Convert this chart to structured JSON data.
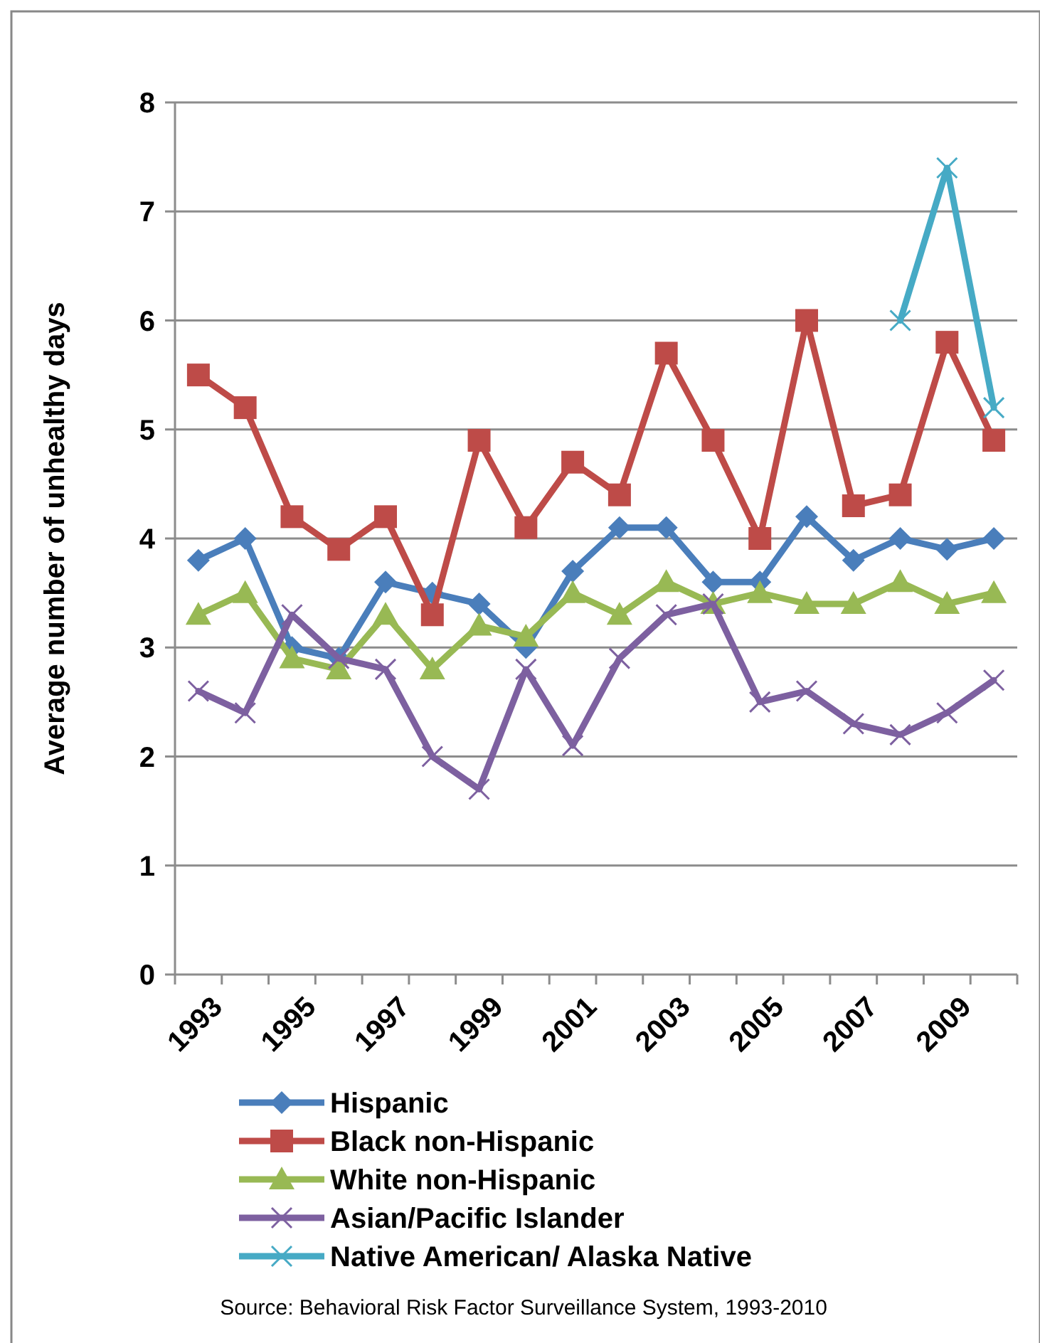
{
  "chart_data": {
    "type": "line",
    "ylabel": "Average number of unhealthy days",
    "categories": [
      "1993",
      null,
      "1995",
      null,
      "1997",
      null,
      "1999",
      null,
      "2001",
      null,
      "2003",
      null,
      "2005",
      null,
      "2007",
      null,
      "2009",
      null
    ],
    "series": [
      {
        "name": "Hispanic",
        "color": "#4a7ebb",
        "marker": "diamond",
        "values": [
          3.8,
          4.0,
          3.0,
          2.9,
          3.6,
          3.5,
          3.4,
          3.0,
          3.7,
          4.1,
          4.1,
          3.6,
          3.6,
          4.2,
          3.8,
          4.0,
          3.9,
          4.0
        ]
      },
      {
        "name": "Black non-Hispanic",
        "color": "#be4b48",
        "marker": "square",
        "values": [
          5.5,
          5.2,
          4.2,
          3.9,
          4.2,
          3.3,
          4.9,
          4.1,
          4.7,
          4.4,
          5.7,
          4.9,
          4.0,
          6.0,
          4.3,
          4.4,
          5.8,
          4.9
        ]
      },
      {
        "name": "White non-Hispanic",
        "color": "#98b954",
        "marker": "triangle",
        "values": [
          3.3,
          3.5,
          2.9,
          2.8,
          3.3,
          2.8,
          3.2,
          3.1,
          3.5,
          3.3,
          3.6,
          3.4,
          3.5,
          3.4,
          3.4,
          3.6,
          3.4,
          3.5
        ]
      },
      {
        "name": "Asian/Pacific Islander",
        "color": "#7d60a0",
        "marker": "cross",
        "values": [
          2.6,
          2.4,
          3.3,
          2.9,
          2.8,
          2.0,
          1.7,
          2.8,
          2.1,
          2.9,
          3.3,
          3.4,
          2.5,
          2.6,
          2.3,
          2.2,
          2.4,
          2.7
        ]
      },
      {
        "name": "Native American/ Alaska Native",
        "color": "#46aac5",
        "marker": "cross",
        "values": [
          null,
          null,
          null,
          null,
          null,
          null,
          null,
          null,
          null,
          null,
          null,
          null,
          null,
          null,
          null,
          6.0,
          7.4,
          5.2
        ]
      }
    ],
    "ylim": [
      0,
      8
    ],
    "yticks": [
      0,
      1,
      2,
      3,
      4,
      5,
      6,
      7,
      8
    ],
    "grid": "y",
    "legend": "bottom",
    "line_style": "solid",
    "annotations": [
      "Source: Behavioral Risk Factor Surveillance System, 1993-2010"
    ]
  }
}
